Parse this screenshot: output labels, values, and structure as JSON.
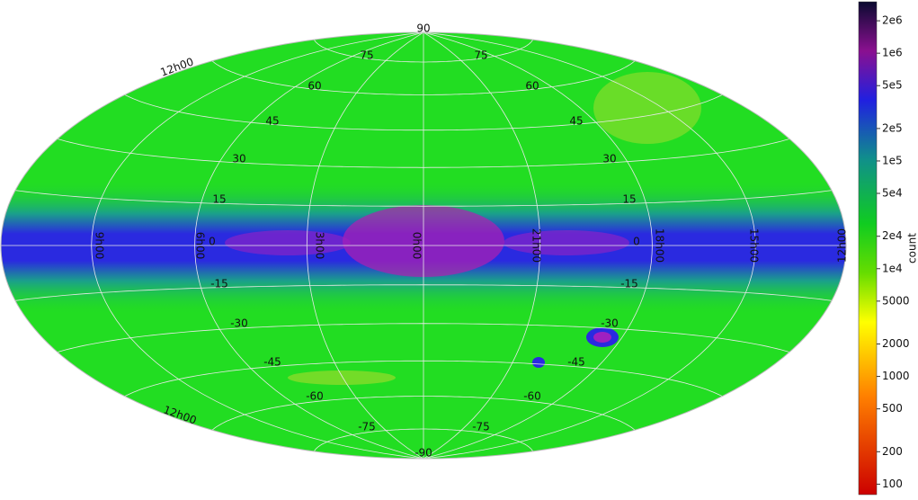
{
  "map": {
    "dec_labels": [
      "90",
      "75",
      "75",
      "60",
      "60",
      "45",
      "45",
      "30",
      "30",
      "15",
      "15",
      "0",
      "0",
      "-15",
      "-15",
      "-30",
      "-30",
      "-45",
      "-45",
      "-60",
      "-60",
      "-75",
      "-75",
      "-90"
    ],
    "ra_labels": [
      "12h00",
      "12h00",
      "9h00",
      "6h00",
      "3h00",
      "0h00",
      "21h00",
      "18h00",
      "15h00",
      "12h00"
    ]
  },
  "colorbar": {
    "label": "count",
    "lim": [
      80,
      3000000
    ],
    "ticks": [
      {
        "value": 2000000,
        "label": "2e6"
      },
      {
        "value": 1000000,
        "label": "1e6"
      },
      {
        "value": 500000,
        "label": "5e5"
      },
      {
        "value": 200000,
        "label": "2e5"
      },
      {
        "value": 100000,
        "label": "1e5"
      },
      {
        "value": 50000,
        "label": "5e4"
      },
      {
        "value": 20000,
        "label": "2e4"
      },
      {
        "value": 10000,
        "label": "1e4"
      },
      5000,
      2000,
      1000,
      500,
      200,
      100
    ]
  }
}
